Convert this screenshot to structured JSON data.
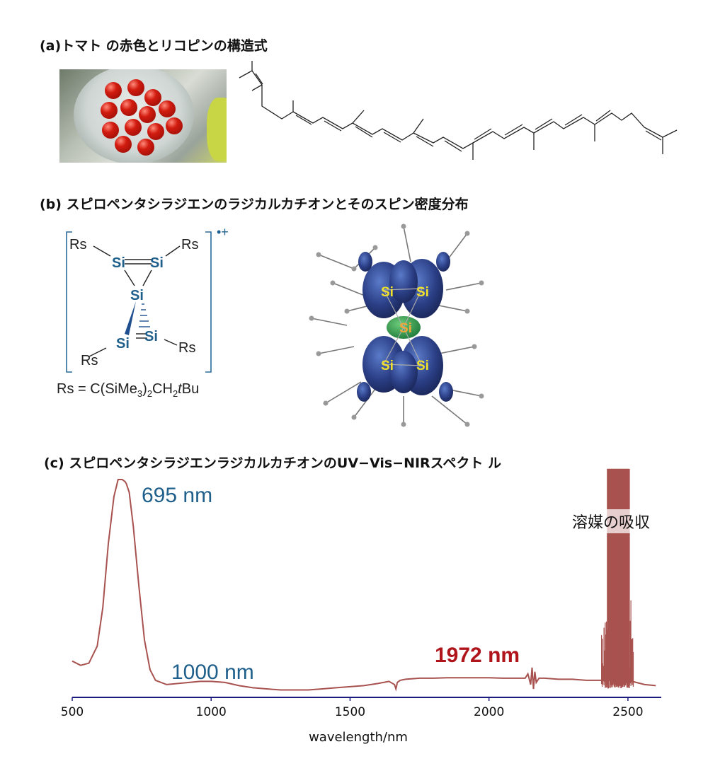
{
  "panel_a": {
    "title": "(a)トマト の赤色とリコピンの構造式"
  },
  "panel_b": {
    "title": "(b) スピロペンタシラジエンのラジカルカチオンとそのスピン密度分布",
    "structure": {
      "rs": "Rs",
      "si": "Si",
      "charge": "•+",
      "rs_formula_prefix": "Rs = C(SiMe",
      "rs_formula_sub1": "3",
      "rs_formula_mid": ")",
      "rs_formula_sub2": "2",
      "rs_formula_suffix1": "CH",
      "rs_formula_sub3": "2",
      "rs_formula_italic": "t",
      "rs_formula_suffix2": "Bu"
    },
    "spin_labels": {
      "si": "Si"
    }
  },
  "panel_c": {
    "title": "(c) スピロペンタシラジエンラジカルカチオンのUV−Vis−NIRスペクト ル"
  },
  "chart_data": {
    "type": "line",
    "xlabel": "wavelength/nm",
    "ylabel": "",
    "xlim": [
      500,
      2620
    ],
    "ticks": [
      500,
      1000,
      1500,
      2000,
      2500
    ],
    "tick_labels": [
      "500",
      "1000",
      "1500",
      "2000",
      "2500"
    ],
    "grid": false,
    "series": [
      {
        "color": "#a8524f",
        "x": [
          500,
          530,
          560,
          590,
          610,
          630,
          650,
          665,
          680,
          690,
          695,
          705,
          720,
          740,
          760,
          780,
          800,
          840,
          880,
          920,
          960,
          1000,
          1050,
          1100,
          1150,
          1200,
          1250,
          1300,
          1350,
          1400,
          1450,
          1500,
          1550,
          1600,
          1640,
          1660,
          1665,
          1670,
          1680,
          1700,
          1750,
          1800,
          1850,
          1900,
          1950,
          1972,
          2000,
          2050,
          2100,
          2130,
          2140,
          2150,
          2155,
          2160,
          2165,
          2170,
          2180,
          2200,
          2250,
          2300,
          2350,
          2380,
          2400,
          2420,
          2440,
          2460,
          2480,
          2500,
          2530,
          2560,
          2600
        ],
        "y": [
          0.15,
          0.13,
          0.14,
          0.22,
          0.4,
          0.7,
          0.92,
          1.0,
          1.0,
          0.99,
          0.98,
          0.94,
          0.78,
          0.5,
          0.25,
          0.11,
          0.06,
          0.04,
          0.045,
          0.05,
          0.055,
          0.055,
          0.05,
          0.035,
          0.025,
          0.02,
          0.015,
          0.015,
          0.015,
          0.02,
          0.025,
          0.03,
          0.035,
          0.045,
          0.055,
          0.04,
          0.02,
          0.05,
          0.06,
          0.065,
          0.07,
          0.07,
          0.072,
          0.072,
          0.072,
          0.072,
          0.072,
          0.07,
          0.07,
          0.07,
          0.09,
          0.04,
          0.12,
          0.02,
          0.1,
          0.05,
          0.07,
          0.07,
          0.065,
          0.065,
          0.06,
          0.06,
          0.06,
          0.06,
          0.06,
          0.06,
          0.06,
          0.06,
          0.05,
          0.04,
          0.035
        ]
      }
    ],
    "annotations": [
      {
        "text": "695 nm",
        "color": "#1f5f8b"
      },
      {
        "text": "1000 nm",
        "color": "#1f5f8b"
      },
      {
        "text": "1972 nm",
        "color": "#b0151c"
      },
      {
        "text": "溶媒の吸収",
        "color": "#111111"
      }
    ],
    "axis_color": "#1b1b80"
  }
}
